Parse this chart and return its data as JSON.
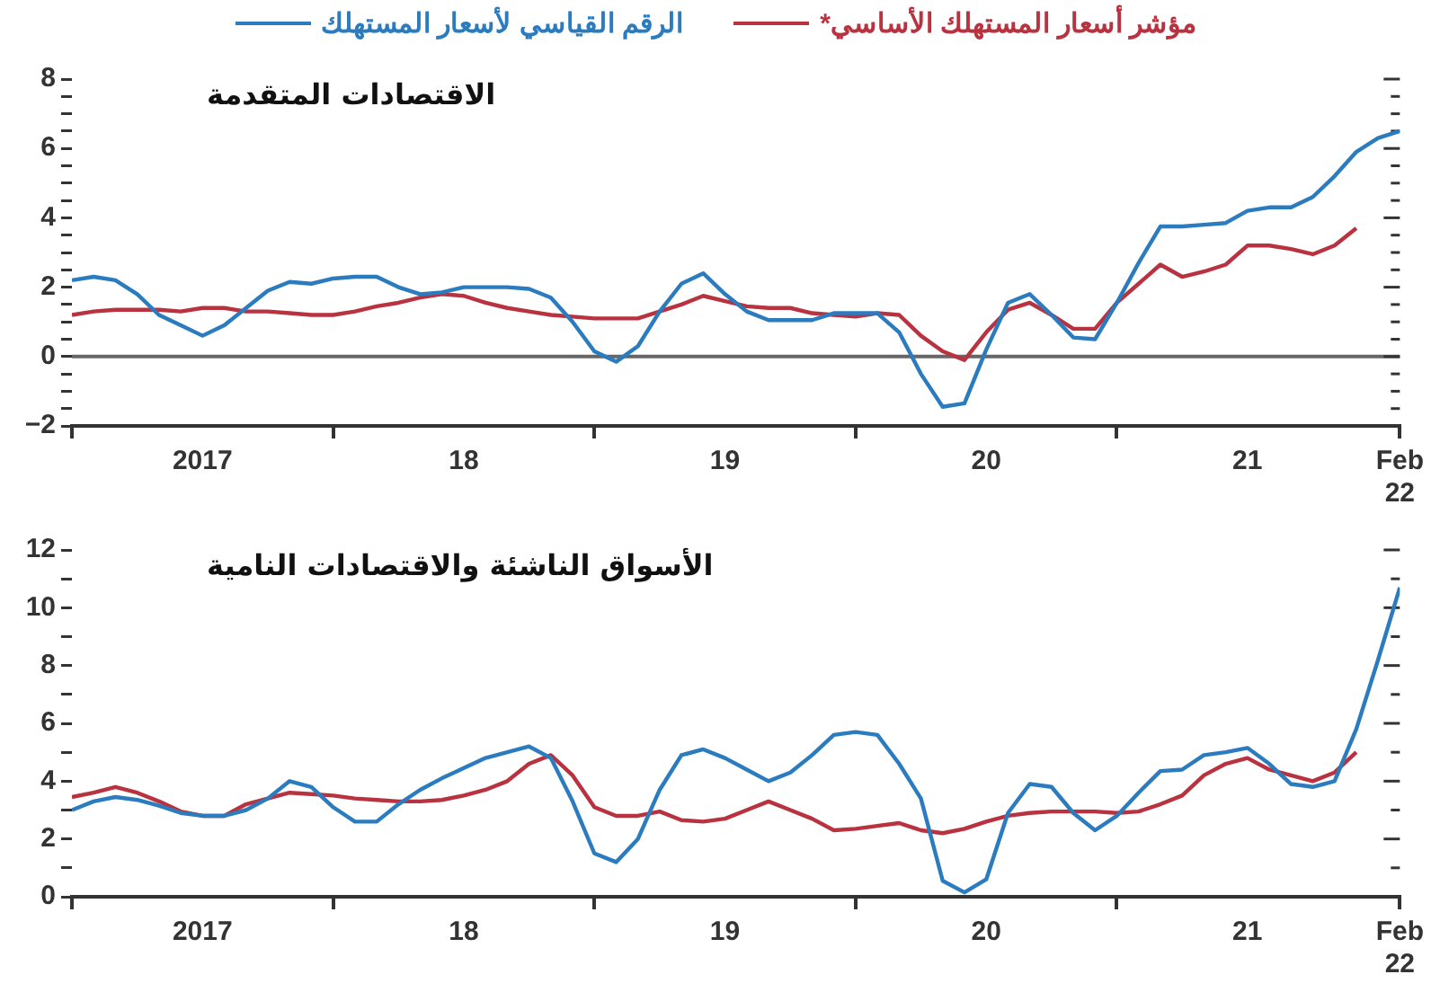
{
  "chart_data": [
    {
      "type": "line",
      "title": "الاقتصادات المتقدمة",
      "legend": "top",
      "x": [
        "2017-01",
        "2017-02",
        "2017-03",
        "2017-04",
        "2017-05",
        "2017-06",
        "2017-07",
        "2017-08",
        "2017-09",
        "2017-10",
        "2017-11",
        "2017-12",
        "2018-01",
        "2018-02",
        "2018-03",
        "2018-04",
        "2018-05",
        "2018-06",
        "2018-07",
        "2018-08",
        "2018-09",
        "2018-10",
        "2018-11",
        "2018-12",
        "2019-01",
        "2019-02",
        "2019-03",
        "2019-04",
        "2019-05",
        "2019-06",
        "2019-07",
        "2019-08",
        "2019-09",
        "2019-10",
        "2019-11",
        "2019-12",
        "2020-01",
        "2020-02",
        "2020-03",
        "2020-04",
        "2020-05",
        "2020-06",
        "2020-07",
        "2020-08",
        "2020-09",
        "2020-10",
        "2020-11",
        "2020-12",
        "2021-01",
        "2021-02",
        "2021-03",
        "2021-04",
        "2021-05",
        "2021-06",
        "2021-07",
        "2021-08",
        "2021-09",
        "2021-10",
        "2021-11",
        "2021-12",
        "2022-01",
        "2022-02"
      ],
      "series": [
        {
          "name": "الرقم القياسي لأسعار المستهلك",
          "color": "#2b7bbf",
          "values": [
            2.2,
            2.3,
            2.2,
            1.8,
            1.2,
            0.9,
            0.6,
            0.9,
            1.4,
            1.9,
            2.15,
            2.1,
            2.25,
            2.3,
            2.3,
            2.0,
            1.8,
            1.85,
            2.0,
            2.0,
            2.0,
            1.95,
            1.7,
            1.0,
            0.15,
            -0.15,
            0.3,
            1.3,
            2.1,
            2.4,
            1.8,
            1.3,
            1.05,
            1.05,
            1.05,
            1.25,
            1.25,
            1.25,
            0.7,
            -0.5,
            -1.45,
            -1.35,
            0.2,
            1.55,
            1.8,
            1.2,
            0.55,
            0.5,
            1.55,
            2.7,
            3.75,
            3.75,
            3.8,
            3.85,
            4.2,
            4.3,
            4.3,
            4.6,
            5.2,
            5.9,
            6.3,
            6.5
          ]
        },
        {
          "name": "مؤشر أسعار المستهلك الأساسي*",
          "color": "#b8323f",
          "values": [
            1.2,
            1.3,
            1.35,
            1.35,
            1.35,
            1.3,
            1.4,
            1.4,
            1.3,
            1.3,
            1.25,
            1.2,
            1.2,
            1.3,
            1.45,
            1.55,
            1.7,
            1.8,
            1.75,
            1.55,
            1.4,
            1.3,
            1.2,
            1.15,
            1.1,
            1.1,
            1.1,
            1.3,
            1.5,
            1.75,
            1.6,
            1.45,
            1.4,
            1.4,
            1.25,
            1.2,
            1.15,
            1.25,
            1.2,
            0.6,
            0.15,
            -0.1,
            0.7,
            1.35,
            1.55,
            1.2,
            0.8,
            0.8,
            1.55,
            2.1,
            2.65,
            2.3,
            2.45,
            2.65,
            3.2,
            3.2,
            3.1,
            2.95,
            3.2,
            3.7,
            null,
            null
          ]
        }
      ],
      "xlim": [
        "2017-01",
        "2022-02"
      ],
      "xticks": [
        {
          "value": "2017-01",
          "label": null
        },
        {
          "value": "2017-07",
          "label": "2017"
        },
        {
          "value": "2018-01",
          "label": null
        },
        {
          "value": "2018-07",
          "label": "18"
        },
        {
          "value": "2019-01",
          "label": null
        },
        {
          "value": "2019-07",
          "label": "19"
        },
        {
          "value": "2020-01",
          "label": null
        },
        {
          "value": "2020-07",
          "label": "20"
        },
        {
          "value": "2021-01",
          "label": null
        },
        {
          "value": "2021-07",
          "label": "21"
        },
        {
          "value": "2022-02",
          "label": "Feb 22"
        }
      ],
      "ylim": [
        -2,
        8
      ],
      "yticks": [
        -2,
        {
          "value": -1.5,
          "label": null
        },
        {
          "value": -1,
          "label": null
        },
        {
          "value": -0.5,
          "label": null
        },
        0,
        {
          "value": 0.5,
          "label": null
        },
        {
          "value": 1,
          "label": null
        },
        {
          "value": 1.5,
          "label": null
        },
        2,
        {
          "value": 2.5,
          "label": null
        },
        {
          "value": 3,
          "label": null
        },
        {
          "value": 3.5,
          "label": null
        },
        4,
        {
          "value": 4.5,
          "label": null
        },
        {
          "value": 5,
          "label": null
        },
        {
          "value": 5.5,
          "label": null
        },
        6,
        {
          "value": 6.5,
          "label": null
        },
        {
          "value": 7,
          "label": null
        },
        {
          "value": 7.5,
          "label": null
        },
        8
      ],
      "ref_lines": [
        {
          "axis": "y",
          "value": 0,
          "color": "#666666"
        }
      ]
    },
    {
      "type": "line",
      "title": "الأسواق الناشئة والاقتصادات النامية",
      "x": [
        "2017-01",
        "2017-02",
        "2017-03",
        "2017-04",
        "2017-05",
        "2017-06",
        "2017-07",
        "2017-08",
        "2017-09",
        "2017-10",
        "2017-11",
        "2017-12",
        "2018-01",
        "2018-02",
        "2018-03",
        "2018-04",
        "2018-05",
        "2018-06",
        "2018-07",
        "2018-08",
        "2018-09",
        "2018-10",
        "2018-11",
        "2018-12",
        "2019-01",
        "2019-02",
        "2019-03",
        "2019-04",
        "2019-05",
        "2019-06",
        "2019-07",
        "2019-08",
        "2019-09",
        "2019-10",
        "2019-11",
        "2019-12",
        "2020-01",
        "2020-02",
        "2020-03",
        "2020-04",
        "2020-05",
        "2020-06",
        "2020-07",
        "2020-08",
        "2020-09",
        "2020-10",
        "2020-11",
        "2020-12",
        "2021-01",
        "2021-02",
        "2021-03",
        "2021-04",
        "2021-05",
        "2021-06",
        "2021-07",
        "2021-08",
        "2021-09",
        "2021-10",
        "2021-11",
        "2021-12",
        "2022-01",
        "2022-02"
      ],
      "series": [
        {
          "color": "#2b7bbf",
          "values": [
            3.0,
            3.3,
            3.45,
            3.35,
            3.15,
            2.9,
            2.8,
            2.8,
            3.0,
            3.4,
            4.0,
            3.8,
            3.1,
            2.6,
            2.6,
            3.2,
            3.7,
            4.1,
            4.45,
            4.8,
            5.0,
            5.2,
            4.8,
            3.3,
            1.5,
            1.2,
            2.0,
            3.7,
            4.9,
            5.1,
            4.8,
            4.4,
            4.0,
            4.3,
            4.9,
            5.6,
            5.7,
            5.6,
            4.6,
            3.4,
            0.55,
            0.15,
            0.6,
            2.9,
            3.9,
            3.8,
            2.9,
            2.3,
            2.8,
            3.6,
            4.35,
            4.4,
            4.9,
            5.0,
            5.15,
            4.6,
            3.9,
            3.8,
            4.0,
            5.8,
            8.2,
            10.7
          ]
        },
        {
          "color": "#b8323f",
          "values": [
            3.45,
            3.6,
            3.8,
            3.6,
            3.3,
            2.95,
            2.8,
            2.8,
            3.2,
            3.4,
            3.6,
            3.55,
            3.5,
            3.4,
            3.35,
            3.3,
            3.3,
            3.35,
            3.5,
            3.7,
            4.0,
            4.6,
            4.9,
            4.2,
            3.1,
            2.8,
            2.8,
            2.95,
            2.65,
            2.6,
            2.7,
            3.0,
            3.3,
            3.0,
            2.7,
            2.3,
            2.35,
            2.45,
            2.55,
            2.3,
            2.2,
            2.35,
            2.6,
            2.8,
            2.9,
            2.95,
            2.95,
            2.95,
            2.9,
            2.95,
            3.2,
            3.5,
            4.2,
            4.6,
            4.8,
            4.4,
            4.2,
            4.0,
            4.3,
            5.0,
            null,
            null
          ]
        }
      ],
      "xlim": [
        "2017-01",
        "2022-02"
      ],
      "xticks": [
        {
          "value": "2017-01",
          "label": null
        },
        {
          "value": "2017-07",
          "label": "2017"
        },
        {
          "value": "2018-01",
          "label": null
        },
        {
          "value": "2018-07",
          "label": "18"
        },
        {
          "value": "2019-01",
          "label": null
        },
        {
          "value": "2019-07",
          "label": "19"
        },
        {
          "value": "2020-01",
          "label": null
        },
        {
          "value": "2020-07",
          "label": "20"
        },
        {
          "value": "2021-01",
          "label": null
        },
        {
          "value": "2021-07",
          "label": "21"
        },
        {
          "value": "2022-02",
          "label": "Feb 22"
        }
      ],
      "ylim": [
        0,
        12
      ],
      "yticks": [
        0,
        {
          "value": 1,
          "label": null
        },
        2,
        {
          "value": 3,
          "label": null
        },
        4,
        {
          "value": 5,
          "label": null
        },
        6,
        {
          "value": 7,
          "label": null
        },
        8,
        {
          "value": 9,
          "label": null
        },
        10,
        {
          "value": 11,
          "label": null
        },
        12
      ]
    }
  ]
}
